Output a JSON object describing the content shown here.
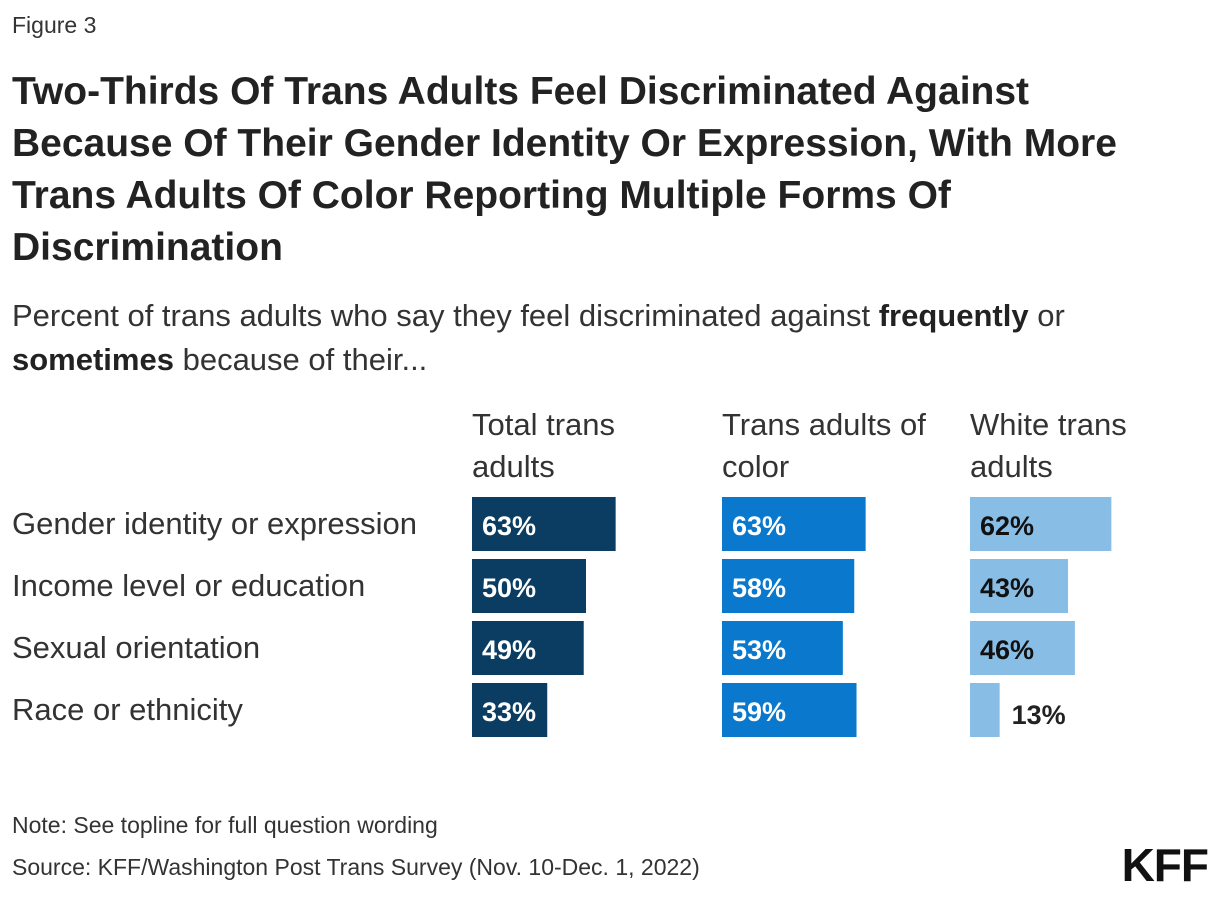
{
  "figure_label": "Figure 3",
  "title": "Two-Thirds Of Trans Adults Feel Discriminated Against Because Of Their Gender Identity Or Expression, With More Trans Adults Of Color Reporting Multiple Forms Of Discrimination",
  "subtitle": {
    "part1": "Percent of trans adults who say they feel discriminated against ",
    "bold1": "frequently",
    "part2": " or ",
    "bold2": "sometimes",
    "part3": " because of their..."
  },
  "note": "Note: See topline for full question wording",
  "source": "Source: KFF/Washington Post Trans Survey (Nov. 10-Dec. 1, 2022)",
  "logo": "KFF",
  "chart_data": {
    "type": "bar",
    "orientation": "horizontal",
    "categories": [
      "Gender identity or expression",
      "Income level or education",
      "Sexual orientation",
      "Race or ethnicity"
    ],
    "series": [
      {
        "name": "Total trans adults",
        "name_lines": [
          "Total trans",
          "adults"
        ],
        "values": [
          63,
          50,
          49,
          33
        ],
        "color": "#0b3d63",
        "label_color": "#ffffff"
      },
      {
        "name": "Trans adults of color",
        "name_lines": [
          "Trans adults of",
          "color"
        ],
        "values": [
          63,
          58,
          53,
          59
        ],
        "color": "#0a78cc",
        "label_color": "#ffffff"
      },
      {
        "name": "White trans adults",
        "name_lines": [
          "White trans",
          "adults"
        ],
        "values": [
          62,
          43,
          46,
          13
        ],
        "color": "#88bde6",
        "label_color": "#111111"
      }
    ],
    "value_suffix": "%",
    "xlim": [
      0,
      100
    ],
    "grid": false,
    "legend": "column headers"
  }
}
